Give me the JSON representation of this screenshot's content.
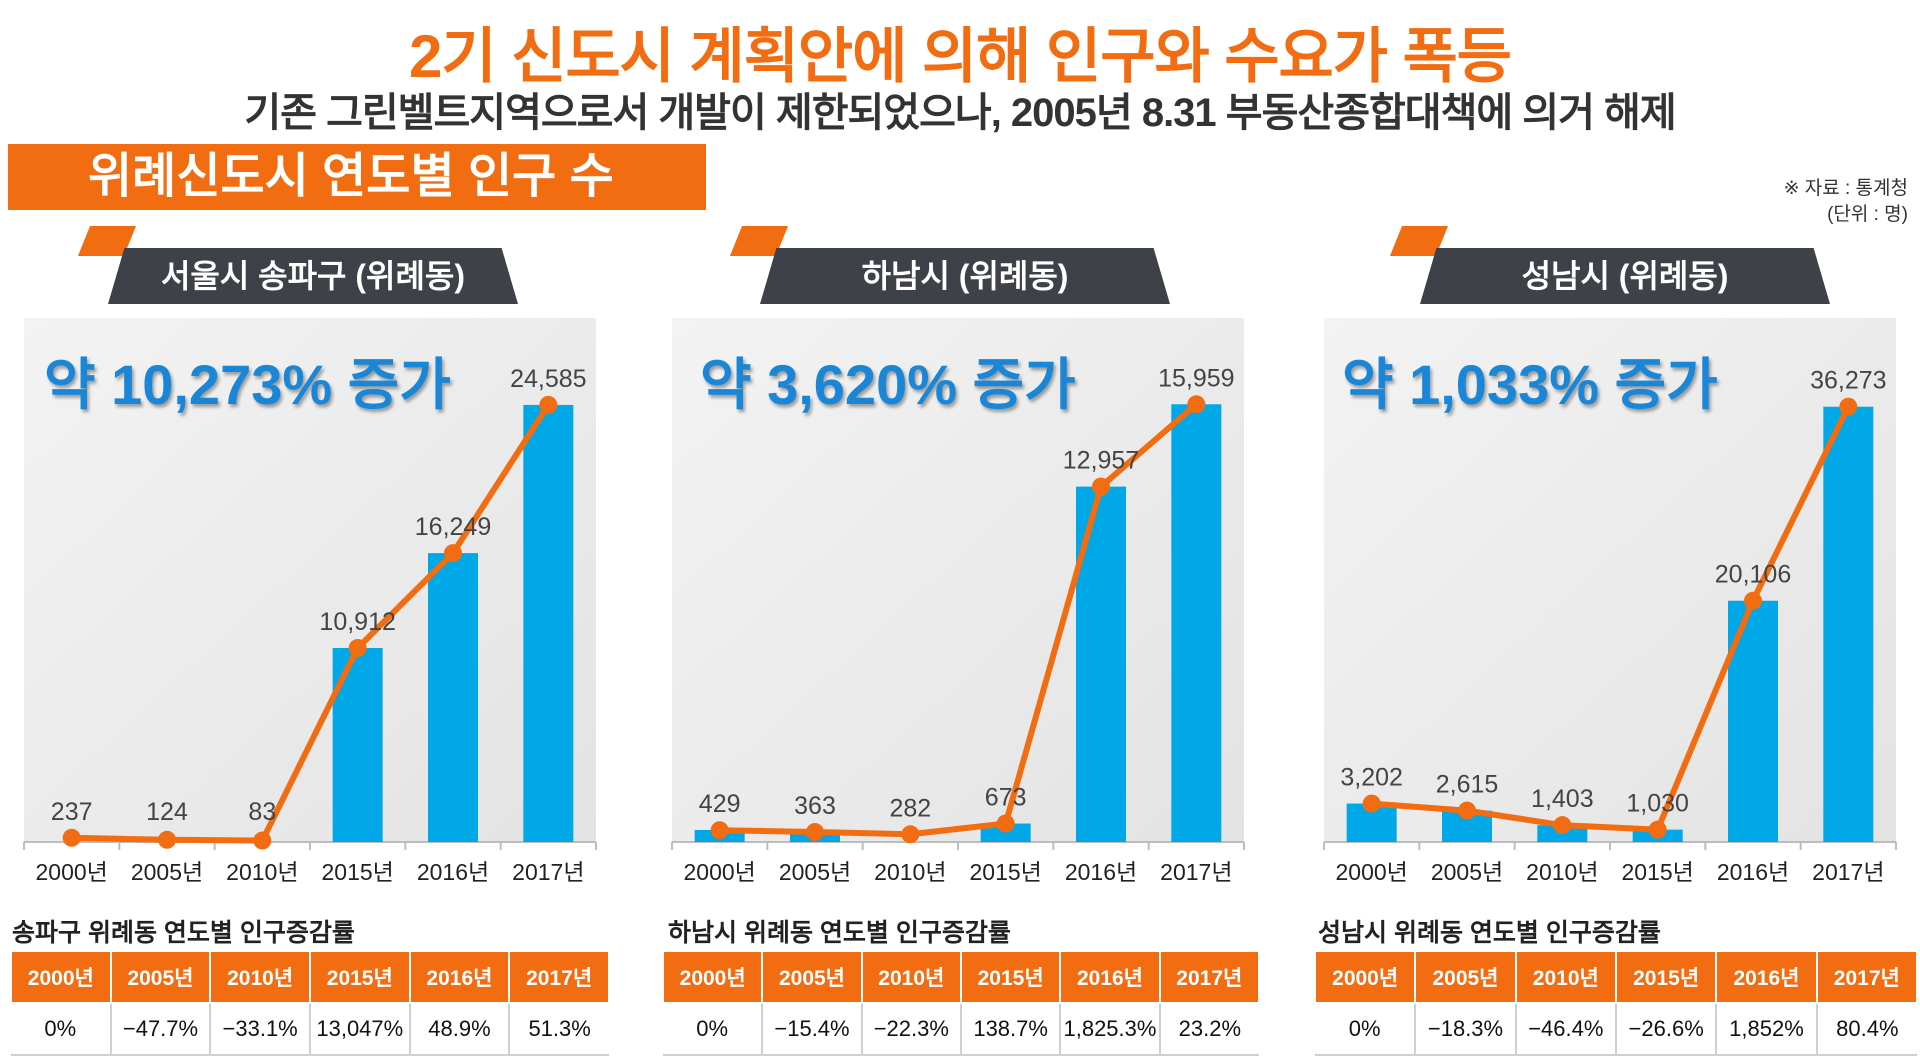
{
  "header": {
    "title": "2기 신도시 계획안에 의해 인구와 수요가 폭등",
    "subtitle": "기존 그린벨트지역으로서 개발이 제한되었으나, 2005년 8.31 부동산종합대책에 의거 해제",
    "section": "위례신도시 연도별 인구 수",
    "source": "※ 자료 : 통계청",
    "unit": "(단위 : 명)"
  },
  "colors": {
    "accent": "#f26c12",
    "bar": "#00a8e8",
    "tab": "#3e4148",
    "growth_text": "#1a86d8"
  },
  "chart_data": [
    {
      "type": "bar",
      "title": "서울시 송파구 (위례동)",
      "annotation": "약 10,273% 증가",
      "categories": [
        "2000년",
        "2005년",
        "2010년",
        "2015년",
        "2016년",
        "2017년"
      ],
      "values": [
        237,
        124,
        83,
        10912,
        16249,
        24585
      ],
      "value_labels": [
        "237",
        "124",
        "83",
        "10,912",
        "16,249",
        "24,585"
      ],
      "bar_visible": [
        false,
        false,
        false,
        true,
        true,
        true
      ],
      "ylim": [
        0,
        27000
      ],
      "overlay": "line",
      "table_title": "송파구 위례동 연도별 인구증감률",
      "rates": [
        "0%",
        "−47.7%",
        "−33.1%",
        "13,047%",
        "48.9%",
        "51.3%"
      ]
    },
    {
      "type": "bar",
      "title": "하남시 (위례동)",
      "annotation": "약 3,620% 증가",
      "categories": [
        "2000년",
        "2005년",
        "2010년",
        "2015년",
        "2016년",
        "2017년"
      ],
      "values": [
        429,
        363,
        282,
        673,
        12957,
        15959
      ],
      "value_labels": [
        "429",
        "363",
        "282",
        "673",
        "12,957",
        "15,959"
      ],
      "bar_visible": [
        true,
        true,
        false,
        true,
        true,
        true
      ],
      "ylim": [
        0,
        17500
      ],
      "overlay": "line",
      "table_title": "하남시 위례동 연도별 인구증감률",
      "rates": [
        "0%",
        "−15.4%",
        "−22.3%",
        "138.7%",
        "1,825.3%",
        "23.2%"
      ]
    },
    {
      "type": "bar",
      "title": "성남시 (위례동)",
      "annotation": "약 1,033% 증가",
      "categories": [
        "2000년",
        "2005년",
        "2010년",
        "2015년",
        "2016년",
        "2017년"
      ],
      "values": [
        3202,
        2615,
        1403,
        1030,
        20106,
        36273
      ],
      "value_labels": [
        "3,202",
        "2,615",
        "1,403",
        "1,030",
        "20,106",
        "36,273"
      ],
      "bar_visible": [
        true,
        true,
        true,
        true,
        true,
        true
      ],
      "ylim": [
        0,
        40000
      ],
      "overlay": "line",
      "table_title": "성남시 위례동 연도별 인구증감률",
      "rates": [
        "0%",
        "−18.3%",
        "−46.4%",
        "−26.6%",
        "1,852%",
        "80.4%"
      ]
    }
  ]
}
